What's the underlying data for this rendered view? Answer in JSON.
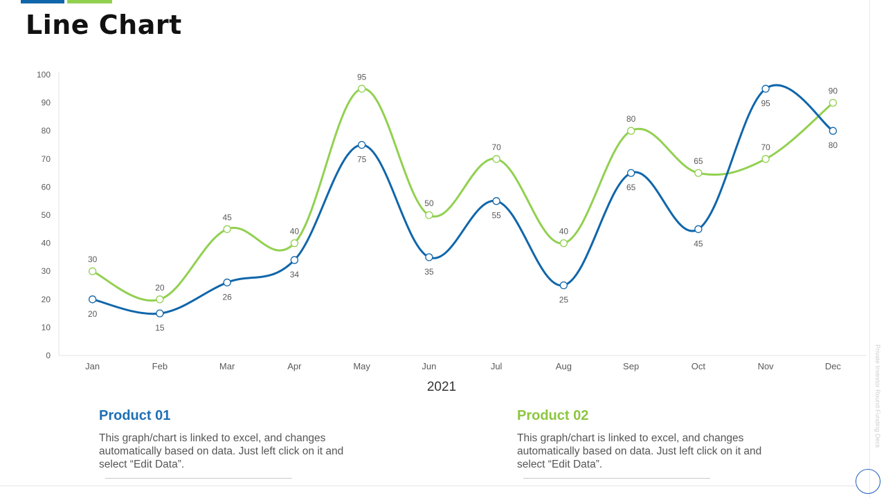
{
  "page": {
    "title": "Line Chart",
    "side_text": "Private Investor Round Funding Deck"
  },
  "colors": {
    "blue": "#1066aa",
    "green": "#92d050",
    "title_blue": "#1f6fb5",
    "title_green": "#8dc63f"
  },
  "chart_data": {
    "type": "line",
    "xlabel": "2021",
    "ylabel": "",
    "ylim": [
      0,
      100
    ],
    "yticks": [
      0,
      10,
      20,
      30,
      40,
      50,
      60,
      70,
      80,
      90,
      100
    ],
    "categories": [
      "Jan",
      "Feb",
      "Mar",
      "Apr",
      "May",
      "Jun",
      "Jul",
      "Aug",
      "Sep",
      "Oct",
      "Nov",
      "Dec"
    ],
    "series": [
      {
        "name": "Product 01",
        "color": "#1066aa",
        "values": [
          20,
          15,
          26,
          34,
          75,
          35,
          55,
          25,
          65,
          45,
          95,
          80
        ],
        "label_position": "below"
      },
      {
        "name": "Product 02",
        "color": "#92d050",
        "values": [
          30,
          20,
          45,
          40,
          95,
          50,
          70,
          40,
          80,
          65,
          70,
          90
        ],
        "label_position": "above"
      }
    ],
    "legend": "bottom"
  },
  "products": [
    {
      "title": "Product 01",
      "description": "This graph/chart is linked to excel, and changes automatically based on data. Just left click on it and select “Edit Data”."
    },
    {
      "title": "Product 02",
      "description": "This graph/chart is linked to excel, and changes automatically based on data. Just left click on it and select “Edit Data”."
    }
  ]
}
